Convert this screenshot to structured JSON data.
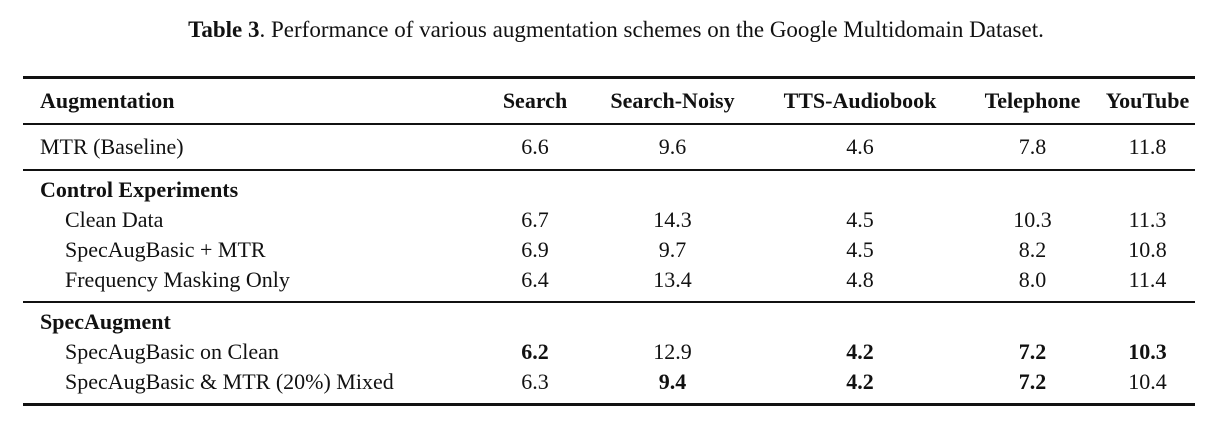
{
  "caption": {
    "label": "Table 3",
    "text": ". Performance of various augmentation schemes on the Google Multidomain Dataset."
  },
  "table": {
    "headers": [
      "Augmentation",
      "Search",
      "Search-Noisy",
      "TTS-Audiobook",
      "Telephone",
      "YouTube"
    ],
    "baseline": {
      "name": "MTR (Baseline)",
      "values": [
        "6.6",
        "9.6",
        "4.6",
        "7.8",
        "11.8"
      ]
    },
    "groups": [
      {
        "title": "Control Experiments",
        "rows": [
          {
            "name": "Clean Data",
            "values": [
              "6.7",
              "14.3",
              "4.5",
              "10.3",
              "11.3"
            ],
            "bold": [
              false,
              false,
              false,
              false,
              false
            ]
          },
          {
            "name": "SpecAugBasic + MTR",
            "values": [
              "6.9",
              "9.7",
              "4.5",
              "8.2",
              "10.8"
            ],
            "bold": [
              false,
              false,
              false,
              false,
              false
            ]
          },
          {
            "name": "Frequency Masking Only",
            "values": [
              "6.4",
              "13.4",
              "4.8",
              "8.0",
              "11.4"
            ],
            "bold": [
              false,
              false,
              false,
              false,
              false
            ]
          }
        ]
      },
      {
        "title": "SpecAugment",
        "rows": [
          {
            "name": "SpecAugBasic on Clean",
            "values": [
              "6.2",
              "12.9",
              "4.2",
              "7.2",
              "10.3"
            ],
            "bold": [
              true,
              false,
              true,
              true,
              true
            ]
          },
          {
            "name": "SpecAugBasic & MTR (20%) Mixed",
            "values": [
              "6.3",
              "9.4",
              "4.2",
              "7.2",
              "10.4"
            ],
            "bold": [
              false,
              true,
              true,
              true,
              false
            ]
          }
        ]
      }
    ]
  }
}
